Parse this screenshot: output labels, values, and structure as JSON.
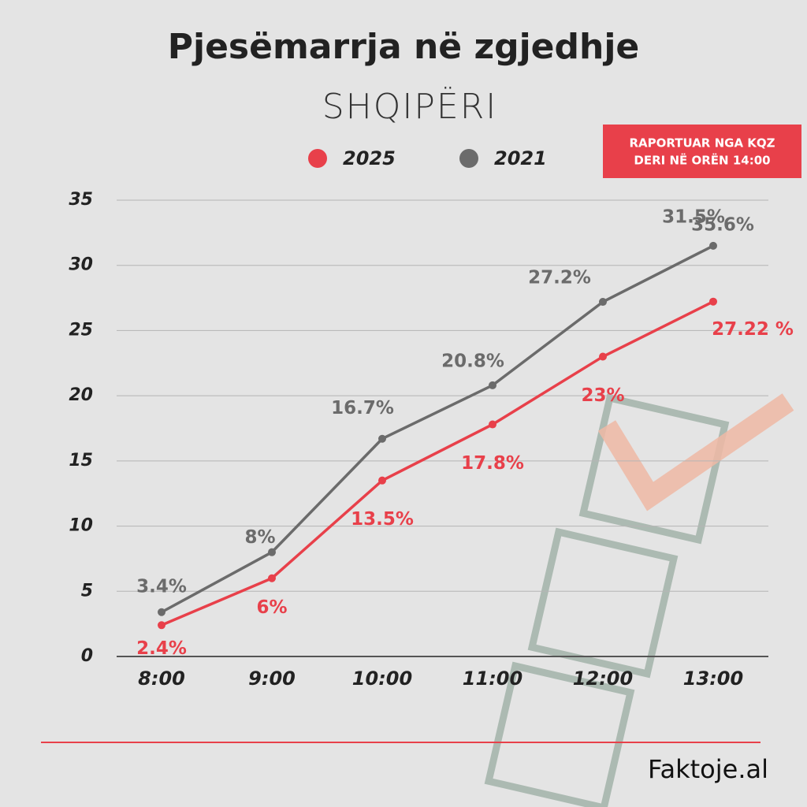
{
  "chart_data": {
    "type": "line",
    "title": "Pjesëmarrja në zgjedhje",
    "subtitle": "SHQIPËRI",
    "categories": [
      "8:00",
      "9:00",
      "10:00",
      "11:00",
      "12:00",
      "13:00"
    ],
    "series": [
      {
        "name": "2025",
        "color": "#e8404a",
        "values": [
          2.4,
          6,
          13.5,
          17.8,
          23,
          27.22
        ],
        "value_labels": [
          "2.4%",
          "6%",
          "13.5%",
          "17.8%",
          "23%",
          "27.22 %"
        ]
      },
      {
        "name": "2021",
        "color": "#6b6b6b",
        "values": [
          3.4,
          8,
          16.7,
          20.8,
          27.2,
          31.5
        ],
        "value_labels": [
          "3.4%",
          "8%",
          "16.7%",
          "20.8%",
          "27.2%",
          "31.5%"
        ]
      }
    ],
    "ylim": [
      0,
      35
    ],
    "yticks": [
      0,
      5,
      10,
      15,
      20,
      25,
      30,
      35
    ],
    "grid": true,
    "annotations": [
      "RAPORTUAR NGA KQZ",
      "DERI NË ORËN 14:00",
      "35.6%"
    ],
    "footer": "Faktoje.al"
  }
}
